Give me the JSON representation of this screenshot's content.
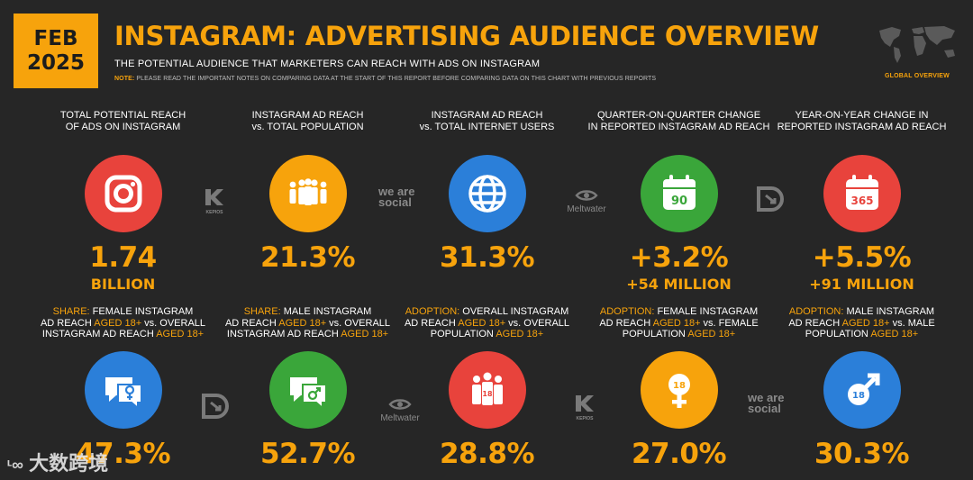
{
  "date_badge": {
    "line1": "FEB",
    "line2": "2025"
  },
  "title": "INSTAGRAM: ADVERTISING AUDIENCE OVERVIEW",
  "subtitle": "THE POTENTIAL AUDIENCE THAT MARKETERS CAN REACH WITH ADS ON INSTAGRAM",
  "note": {
    "label": "NOTE:",
    "text": "PLEASE READ THE IMPORTANT NOTES ON COMPARING DATA AT THE START OF THIS REPORT BEFORE COMPARING DATA ON THIS CHART WITH PREVIOUS REPORTS"
  },
  "map_label": "GLOBAL OVERVIEW",
  "row1": [
    {
      "l1": "TOTAL POTENTIAL REACH",
      "l2": "OF ADS ON INSTAGRAM",
      "icon": "instagram-icon",
      "color": "#e8433c",
      "value": "1.74",
      "sub": "BILLION"
    },
    {
      "l1": "INSTAGRAM AD REACH",
      "l2": "vs. TOTAL POPULATION",
      "icon": "people-icon",
      "color": "#f7a30c",
      "value": "21.3%",
      "sub": ""
    },
    {
      "l1": "INSTAGRAM AD REACH",
      "l2": "vs. TOTAL INTERNET USERS",
      "icon": "globe-icon",
      "color": "#2b7fd9",
      "value": "31.3%",
      "sub": ""
    },
    {
      "l1": "QUARTER-ON-QUARTER CHANGE",
      "l2": "IN REPORTED INSTAGRAM AD REACH",
      "icon": "calendar-90-icon",
      "cal": "90",
      "color": "#3aa63a",
      "value": "+3.2%",
      "sub": "+54 MILLION"
    },
    {
      "l1": "YEAR-ON-YEAR CHANGE IN",
      "l2": "REPORTED INSTAGRAM AD REACH",
      "icon": "calendar-365-icon",
      "cal": "365",
      "color": "#e8433c",
      "value": "+5.5%",
      "sub": "+91 MILLION"
    }
  ],
  "row2": [
    {
      "h1": "SHARE:",
      "t1": " FEMALE INSTAGRAM",
      "t2a": "AD REACH ",
      "h2": "AGED 18+",
      "t2b": " vs. OVERALL",
      "t3a": "INSTAGRAM AD REACH ",
      "h3": "AGED 18+",
      "icon": "female-chat-icon",
      "color": "#2b7fd9",
      "value": "47.3%"
    },
    {
      "h1": "SHARE:",
      "t1": " MALE INSTAGRAM",
      "t2a": "AD REACH ",
      "h2": "AGED 18+",
      "t2b": " vs. OVERALL",
      "t3a": "INSTAGRAM AD REACH ",
      "h3": "AGED 18+",
      "icon": "male-chat-icon",
      "color": "#3aa63a",
      "value": "52.7%"
    },
    {
      "h1": "ADOPTION:",
      "t1": " OVERALL INSTAGRAM",
      "t2a": "AD REACH ",
      "h2": "AGED 18+",
      "t2b": " vs. OVERALL",
      "t3a": "POPULATION ",
      "h3": "AGED 18+",
      "icon": "adults-18-icon",
      "color": "#e8433c",
      "value": "28.8%"
    },
    {
      "h1": "ADOPTION:",
      "t1": " FEMALE INSTAGRAM",
      "t2a": "AD REACH ",
      "h2": "AGED 18+",
      "t2b": " vs. FEMALE",
      "t3a": "POPULATION ",
      "h3": "AGED 18+",
      "icon": "female-18-icon",
      "color": "#f7a30c",
      "value": "27.0%"
    },
    {
      "h1": "ADOPTION:",
      "t1": " MALE INSTAGRAM",
      "t2a": "AD REACH ",
      "h2": "AGED 18+",
      "t2b": " vs. MALE",
      "t3a": "POPULATION ",
      "h3": "AGED 18+",
      "icon": "male-18-icon",
      "color": "#2b7fd9",
      "value": "30.3%"
    }
  ],
  "logos": {
    "kepios": "KEPIOS",
    "wearesocial": "we are social",
    "meltwater": "Meltwater"
  },
  "watermark": "大数跨境"
}
